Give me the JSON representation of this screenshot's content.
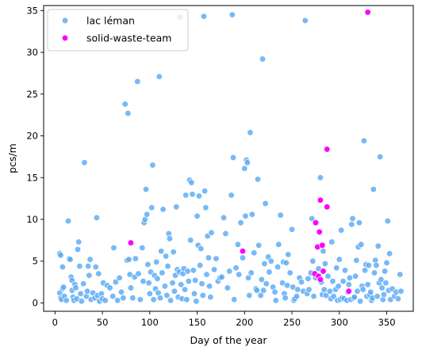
{
  "chart_data": {
    "type": "scatter",
    "title": "",
    "xlabel": "Day of the year",
    "ylabel": "pcs/m",
    "xlim": [
      -12,
      378
    ],
    "ylim": [
      -1,
      35.6
    ],
    "xticks": [
      0,
      50,
      100,
      150,
      200,
      250,
      300,
      350
    ],
    "yticks": [
      0,
      5,
      10,
      15,
      20,
      25,
      30,
      35
    ],
    "grid": false,
    "legend_position": "top-left",
    "series": [
      {
        "name": "lac léman",
        "color": "#56a8f5",
        "points": [
          [
            5,
            5.9
          ],
          [
            6,
            5.7
          ],
          [
            5,
            1.2
          ],
          [
            6,
            0.6
          ],
          [
            7,
            0.4
          ],
          [
            8,
            1.7
          ],
          [
            8,
            4.3
          ],
          [
            9,
            1.9
          ],
          [
            10,
            0.8
          ],
          [
            12,
            0.3
          ],
          [
            14,
            9.8
          ],
          [
            15,
            5.3
          ],
          [
            16,
            5.2
          ],
          [
            17,
            3.1
          ],
          [
            18,
            2.7
          ],
          [
            18,
            1.5
          ],
          [
            19,
            0.7
          ],
          [
            20,
            0.3
          ],
          [
            21,
            2.2
          ],
          [
            22,
            1.8
          ],
          [
            23,
            0.5
          ],
          [
            24,
            6.4
          ],
          [
            25,
            7.3
          ],
          [
            26,
            4.4
          ],
          [
            27,
            1.1
          ],
          [
            28,
            0.2
          ],
          [
            30,
            2.3
          ],
          [
            31,
            16.8
          ],
          [
            33,
            0.8
          ],
          [
            34,
            1.4
          ],
          [
            35,
            4.4
          ],
          [
            36,
            3.3
          ],
          [
            37,
            5.2
          ],
          [
            38,
            0.4
          ],
          [
            40,
            1.2
          ],
          [
            42,
            0.6
          ],
          [
            43,
            4.3
          ],
          [
            44,
            10.2
          ],
          [
            45,
            0.9
          ],
          [
            46,
            3.5
          ],
          [
            47,
            0.2
          ],
          [
            49,
            1.1
          ],
          [
            50,
            0.5
          ],
          [
            51,
            2.4
          ],
          [
            53,
            0.3
          ],
          [
            55,
            2.1
          ],
          [
            58,
            1.8
          ],
          [
            61,
            0.8
          ],
          [
            62,
            6.6
          ],
          [
            64,
            2.5
          ],
          [
            66,
            0.3
          ],
          [
            68,
            3.0
          ],
          [
            70,
            1.3
          ],
          [
            72,
            0.6
          ],
          [
            74,
            23.8
          ],
          [
            76,
            5.1
          ],
          [
            77,
            22.7
          ],
          [
            78,
            5.2
          ],
          [
            79,
            3.4
          ],
          [
            80,
            1.8
          ],
          [
            82,
            0.6
          ],
          [
            84,
            3.1
          ],
          [
            85,
            5.3
          ],
          [
            87,
            26.5
          ],
          [
            88,
            3.5
          ],
          [
            90,
            0.4
          ],
          [
            92,
            6.6
          ],
          [
            93,
            2.6
          ],
          [
            94,
            9.6
          ],
          [
            95,
            10.0
          ],
          [
            96,
            13.6
          ],
          [
            97,
            10.6
          ],
          [
            98,
            4.6
          ],
          [
            99,
            2.4
          ],
          [
            100,
            1.1
          ],
          [
            101,
            3.7
          ],
          [
            102,
            11.4
          ],
          [
            103,
            16.5
          ],
          [
            104,
            0.4
          ],
          [
            105,
            3.3
          ],
          [
            106,
            1.7
          ],
          [
            107,
            4.9
          ],
          [
            108,
            2.9
          ],
          [
            109,
            1.2
          ],
          [
            110,
            27.1
          ],
          [
            111,
            0.6
          ],
          [
            112,
            6.2
          ],
          [
            113,
            3.6
          ],
          [
            114,
            11.2
          ],
          [
            116,
            2.0
          ],
          [
            117,
            5.6
          ],
          [
            118,
            0.9
          ],
          [
            119,
            4.4
          ],
          [
            120,
            8.3
          ],
          [
            121,
            7.7
          ],
          [
            122,
            0.3
          ],
          [
            124,
            2.4
          ],
          [
            125,
            6.1
          ],
          [
            126,
            1.4
          ],
          [
            127,
            3.3
          ],
          [
            128,
            11.5
          ],
          [
            129,
            4.0
          ],
          [
            130,
            0.7
          ],
          [
            131,
            3.7
          ],
          [
            132,
            34.2
          ],
          [
            133,
            2.2
          ],
          [
            134,
            0.5
          ],
          [
            135,
            3.5
          ],
          [
            136,
            4.1
          ],
          [
            137,
            1.6
          ],
          [
            138,
            12.9
          ],
          [
            139,
            0.4
          ],
          [
            140,
            3.8
          ],
          [
            141,
            2.6
          ],
          [
            142,
            14.7
          ],
          [
            143,
            7.5
          ],
          [
            144,
            14.4
          ],
          [
            145,
            13.0
          ],
          [
            146,
            3.9
          ],
          [
            147,
            1.1
          ],
          [
            148,
            2.7
          ],
          [
            149,
            0.2
          ],
          [
            150,
            10.4
          ],
          [
            151,
            6.9
          ],
          [
            152,
            12.8
          ],
          [
            153,
            4.5
          ],
          [
            154,
            6.5
          ],
          [
            155,
            2.3
          ],
          [
            156,
            0.9
          ],
          [
            157,
            34.3
          ],
          [
            158,
            13.4
          ],
          [
            159,
            11.4
          ],
          [
            160,
            3.4
          ],
          [
            161,
            8.0
          ],
          [
            162,
            5.4
          ],
          [
            163,
            2.0
          ],
          [
            164,
            0.7
          ],
          [
            165,
            8.4
          ],
          [
            168,
            4.0
          ],
          [
            170,
            5.3
          ],
          [
            172,
            2.6
          ],
          [
            174,
            3.0
          ],
          [
            176,
            3.1
          ],
          [
            178,
            10.2
          ],
          [
            180,
            8.3
          ],
          [
            182,
            1.8
          ],
          [
            184,
            3.8
          ],
          [
            186,
            12.9
          ],
          [
            187,
            34.5
          ],
          [
            188,
            17.4
          ],
          [
            189,
            0.4
          ],
          [
            191,
            4.2
          ],
          [
            193,
            7.0
          ],
          [
            194,
            3.4
          ],
          [
            196,
            9.6
          ],
          [
            198,
            5.4
          ],
          [
            200,
            16.1
          ],
          [
            201,
            10.4
          ],
          [
            202,
            17.1
          ],
          [
            203,
            16.8
          ],
          [
            204,
            3.0
          ],
          [
            205,
            0.9
          ],
          [
            206,
            20.4
          ],
          [
            207,
            3.6
          ],
          [
            208,
            10.6
          ],
          [
            210,
            6.0
          ],
          [
            212,
            1.7
          ],
          [
            213,
            1.5
          ],
          [
            214,
            14.8
          ],
          [
            215,
            6.9
          ],
          [
            217,
            0.9
          ],
          [
            218,
            2.8
          ],
          [
            219,
            29.2
          ],
          [
            220,
            1.5
          ],
          [
            221,
            4.7
          ],
          [
            222,
            11.9
          ],
          [
            223,
            2.3
          ],
          [
            225,
            5.5
          ],
          [
            226,
            3.7
          ],
          [
            228,
            5.0
          ],
          [
            230,
            1.9
          ],
          [
            232,
            1.3
          ],
          [
            233,
            0.3
          ],
          [
            235,
            4.3
          ],
          [
            236,
            7.0
          ],
          [
            238,
            10.5
          ],
          [
            240,
            2.4
          ],
          [
            241,
            4.9
          ],
          [
            242,
            1.1
          ],
          [
            243,
            0.6
          ],
          [
            244,
            4.8
          ],
          [
            245,
            2.1
          ],
          [
            246,
            5.8
          ],
          [
            248,
            3.6
          ],
          [
            250,
            8.8
          ],
          [
            251,
            1.9
          ],
          [
            252,
            0.3
          ],
          [
            253,
            0.5
          ],
          [
            255,
            0.8
          ],
          [
            256,
            1.6
          ],
          [
            258,
            3.0
          ],
          [
            260,
            2.5
          ],
          [
            262,
            1.4
          ],
          [
            264,
            33.8
          ],
          [
            266,
            1.1
          ],
          [
            267,
            2.9
          ],
          [
            268,
            1.6
          ],
          [
            270,
            3.6
          ],
          [
            271,
            10.1
          ],
          [
            272,
            5.0
          ],
          [
            273,
            0.8
          ],
          [
            275,
            3.0
          ],
          [
            276,
            9.6
          ],
          [
            278,
            4.1
          ],
          [
            279,
            8.4
          ],
          [
            280,
            15.0
          ],
          [
            281,
            2.5
          ],
          [
            282,
            1.0
          ],
          [
            283,
            6.2
          ],
          [
            284,
            1.6
          ],
          [
            285,
            4.7
          ],
          [
            286,
            0.9
          ],
          [
            287,
            11.5
          ],
          [
            288,
            3.2
          ],
          [
            290,
            1.4
          ],
          [
            291,
            0.5
          ],
          [
            292,
            7.3
          ],
          [
            293,
            2.6
          ],
          [
            294,
            0.8
          ],
          [
            296,
            1.6
          ],
          [
            297,
            4.2
          ],
          [
            298,
            0.3
          ],
          [
            299,
            2.0
          ],
          [
            300,
            5.2
          ],
          [
            301,
            0.4
          ],
          [
            302,
            8.7
          ],
          [
            303,
            0.6
          ],
          [
            304,
            2.6
          ],
          [
            305,
            0.5
          ],
          [
            306,
            3.9
          ],
          [
            308,
            0.3
          ],
          [
            309,
            1.3
          ],
          [
            310,
            2.2
          ],
          [
            311,
            3.0
          ],
          [
            312,
            0.4
          ],
          [
            313,
            9.4
          ],
          [
            314,
            10.1
          ],
          [
            315,
            0.6
          ],
          [
            316,
            0.7
          ],
          [
            317,
            3.2
          ],
          [
            318,
            5.1
          ],
          [
            319,
            1.4
          ],
          [
            320,
            6.7
          ],
          [
            321,
            9.6
          ],
          [
            322,
            0.2
          ],
          [
            323,
            7.0
          ],
          [
            324,
            2.0
          ],
          [
            325,
            1.6
          ],
          [
            326,
            19.4
          ],
          [
            327,
            3.9
          ],
          [
            328,
            4.6
          ],
          [
            329,
            0.8
          ],
          [
            330,
            2.2
          ],
          [
            331,
            4.5
          ],
          [
            332,
            1.0
          ],
          [
            333,
            1.3
          ],
          [
            334,
            0.3
          ],
          [
            335,
            0.6
          ],
          [
            336,
            13.6
          ],
          [
            337,
            3.6
          ],
          [
            338,
            5.1
          ],
          [
            339,
            4.5
          ],
          [
            340,
            0.8
          ],
          [
            341,
            6.8
          ],
          [
            342,
            2.4
          ],
          [
            343,
            17.5
          ],
          [
            344,
            2.8
          ],
          [
            345,
            1.8
          ],
          [
            346,
            0.4
          ],
          [
            347,
            1.0
          ],
          [
            348,
            3.8
          ],
          [
            349,
            2.4
          ],
          [
            350,
            4.8
          ],
          [
            351,
            9.8
          ],
          [
            352,
            1.5
          ],
          [
            353,
            5.9
          ],
          [
            354,
            0.4
          ],
          [
            356,
            1.7
          ],
          [
            358,
            0.8
          ],
          [
            360,
            1.3
          ],
          [
            362,
            0.5
          ],
          [
            364,
            3.4
          ],
          [
            365,
            1.4
          ]
        ]
      },
      {
        "name": "solid-waste-team",
        "color": "#ff00ff",
        "points": [
          [
            80,
            7.2
          ],
          [
            198,
            6.2
          ],
          [
            274,
            3.5
          ],
          [
            275,
            9.6
          ],
          [
            277,
            6.7
          ],
          [
            278,
            3.2
          ],
          [
            279,
            8.5
          ],
          [
            280,
            2.8
          ],
          [
            280,
            12.3
          ],
          [
            282,
            6.9
          ],
          [
            283,
            3.8
          ],
          [
            287,
            11.5
          ],
          [
            287,
            18.4
          ],
          [
            310,
            1.4
          ],
          [
            330,
            34.8
          ]
        ]
      }
    ]
  }
}
